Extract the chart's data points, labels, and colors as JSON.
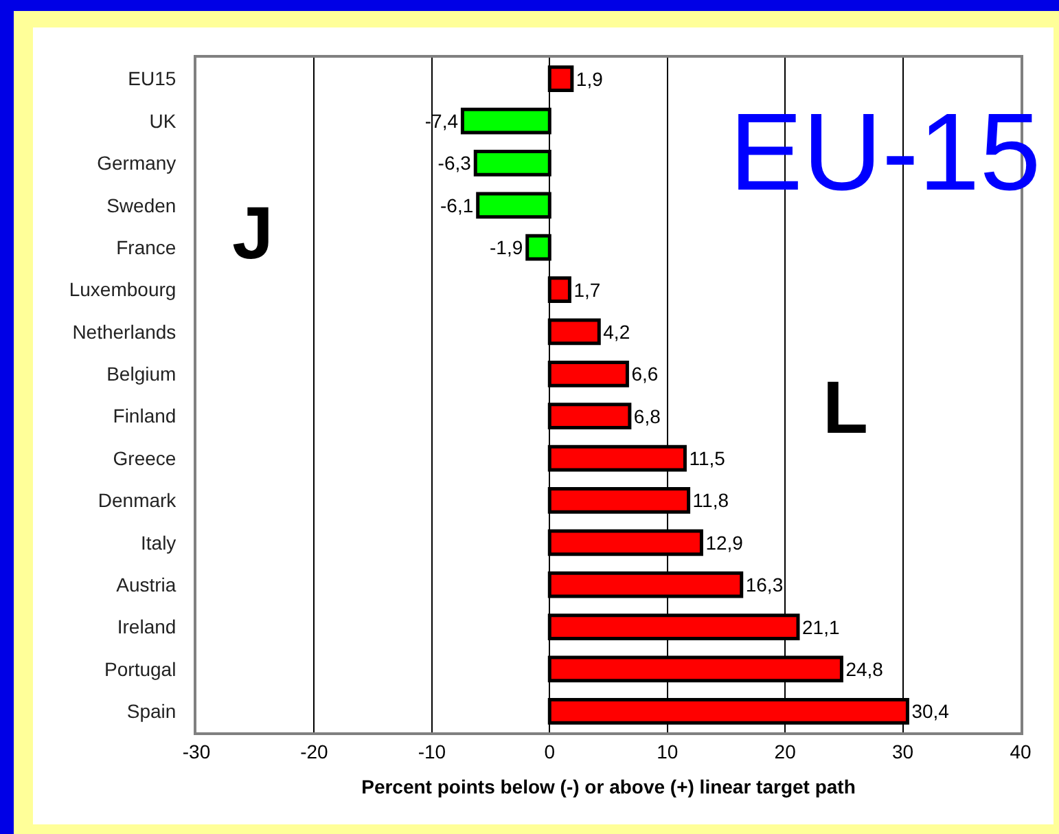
{
  "chart_data": {
    "type": "bar",
    "orientation": "horizontal",
    "xlabel": "Percent points below (-) or above (+) linear target path",
    "categories": [
      "EU15",
      "UK",
      "Germany",
      "Sweden",
      "France",
      "Luxembourg",
      "Netherlands",
      "Belgium",
      "Finland",
      "Greece",
      "Denmark",
      "Italy",
      "Austria",
      "Ireland",
      "Portugal",
      "Spain"
    ],
    "values": [
      1.9,
      -7.4,
      -6.3,
      -6.1,
      -1.9,
      1.7,
      4.2,
      6.6,
      6.8,
      11.5,
      11.8,
      12.9,
      16.3,
      21.1,
      24.8,
      30.4
    ],
    "value_labels": [
      "1,9",
      "-7,4",
      "-6,3",
      "-6,1",
      "-1,9",
      "1,7",
      "4,2",
      "6,6",
      "6,8",
      "11,5",
      "11,8",
      "12,9",
      "16,3",
      "21,1",
      "24,8",
      "30,4"
    ],
    "colors": [
      "#ff0000",
      "#00ff00",
      "#00ff00",
      "#00ff00",
      "#00ff00",
      "#ff0000",
      "#ff0000",
      "#ff0000",
      "#ff0000",
      "#ff0000",
      "#ff0000",
      "#ff0000",
      "#ff0000",
      "#ff0000",
      "#ff0000",
      "#ff0000"
    ],
    "xlim": [
      -30,
      40
    ],
    "xticks": [
      -30,
      -20,
      -10,
      0,
      10,
      20,
      30,
      40
    ],
    "grid": "x",
    "annotations": [
      "EU-15",
      "J",
      "L"
    ]
  }
}
